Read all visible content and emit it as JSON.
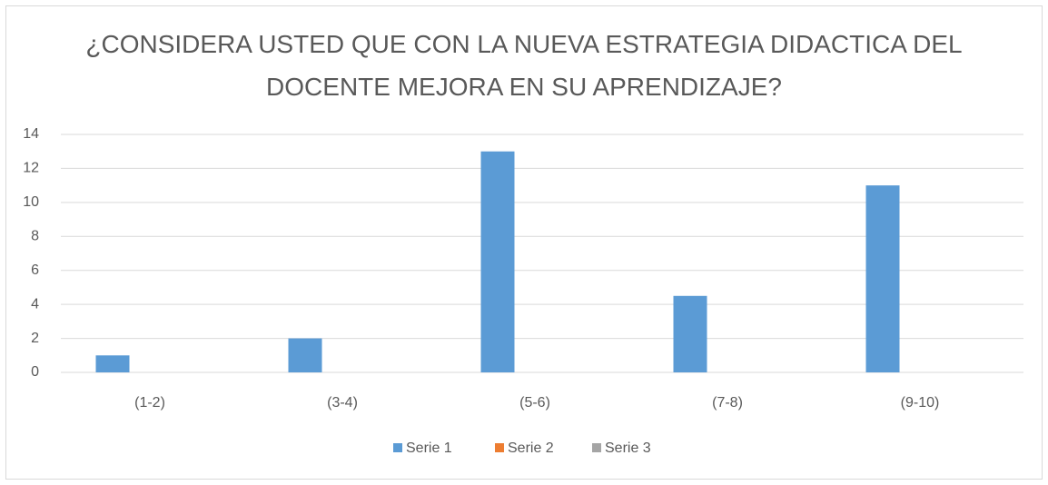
{
  "chart_data": {
    "type": "bar",
    "title": "¿CONSIDERA USTED QUE CON LA NUEVA ESTRATEGIA DIDACTICA DEL DOCENTE MEJORA EN SU APRENDIZAJE?",
    "categories": [
      "(1-2)",
      "(3-4)",
      "(5-6)",
      "(7-8)",
      "(9-10)"
    ],
    "series": [
      {
        "name": "Serie 1",
        "color": "#5b9bd5",
        "values": [
          1,
          2,
          13,
          4.5,
          11
        ]
      },
      {
        "name": "Serie 2",
        "color": "#ed7d31",
        "values": [
          0,
          0,
          0,
          0,
          0
        ]
      },
      {
        "name": "Serie 3",
        "color": "#a5a5a5",
        "values": [
          0,
          0,
          0,
          0,
          0
        ]
      }
    ],
    "ylim": [
      0,
      14
    ],
    "yticks": [
      0,
      2,
      4,
      6,
      8,
      10,
      12,
      14
    ],
    "grid": true,
    "legend": "bottom"
  }
}
